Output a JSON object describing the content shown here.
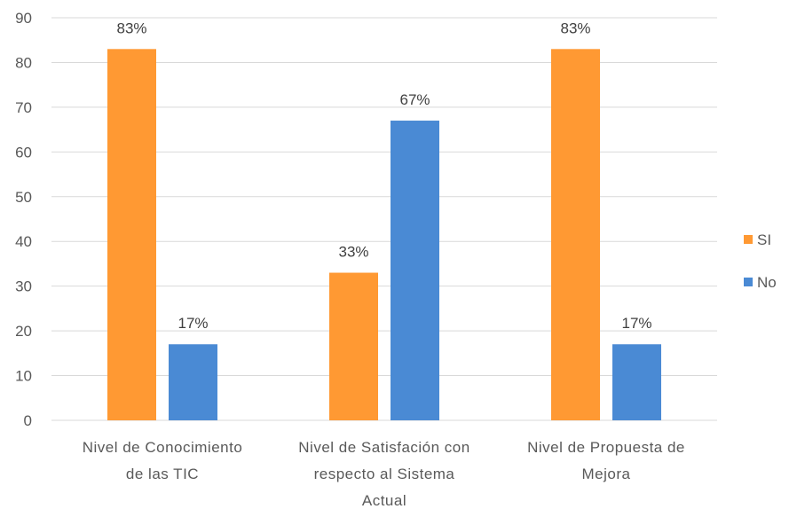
{
  "chart_data": {
    "type": "bar",
    "title": "",
    "xlabel": "",
    "ylabel": "",
    "ylim": [
      0,
      90
    ],
    "yticks": [
      0,
      10,
      20,
      30,
      40,
      50,
      60,
      70,
      80,
      90
    ],
    "grid": true,
    "legend_position": "right",
    "categories": [
      [
        "Nivel de Conocimiento",
        "de las TIC"
      ],
      [
        "Nivel de Satisfación con",
        "respecto al Sistema",
        "Actual"
      ],
      [
        "Nivel de Propuesta de",
        "Mejora"
      ]
    ],
    "series": [
      {
        "name": "SI",
        "color": "#ff9933",
        "values": [
          83,
          33,
          83
        ],
        "labels": [
          "83%",
          "33%",
          "83%"
        ]
      },
      {
        "name": "No",
        "color": "#4a8ad4",
        "values": [
          17,
          67,
          17
        ],
        "labels": [
          "17%",
          "67%",
          "17%"
        ]
      }
    ]
  }
}
